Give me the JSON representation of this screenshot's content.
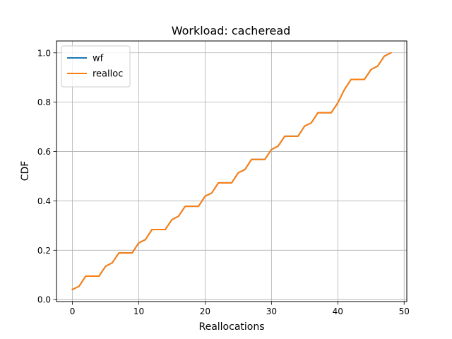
{
  "chart_data": {
    "type": "line",
    "title": "Workload: cacheread",
    "xlabel": "Reallocations",
    "ylabel": "CDF",
    "xlim": [
      -2.4,
      50.4
    ],
    "ylim": [
      -0.008,
      1.048
    ],
    "xticks": [
      0,
      10,
      20,
      30,
      40,
      50
    ],
    "xtick_labels": [
      "0",
      "10",
      "20",
      "30",
      "40",
      "50"
    ],
    "yticks": [
      0.0,
      0.2,
      0.4,
      0.6,
      0.8,
      1.0
    ],
    "ytick_labels": [
      "0.0",
      "0.2",
      "0.4",
      "0.6",
      "0.8",
      "1.0"
    ],
    "grid": true,
    "legend": "upper-left",
    "x": [
      0,
      1,
      2,
      3,
      4,
      5,
      6,
      7,
      8,
      9,
      10,
      11,
      12,
      13,
      14,
      15,
      16,
      17,
      18,
      19,
      20,
      21,
      22,
      23,
      24,
      25,
      26,
      27,
      28,
      29,
      30,
      31,
      32,
      33,
      34,
      35,
      36,
      37,
      38,
      39,
      40,
      41,
      42,
      43,
      44,
      45,
      46,
      47,
      48
    ],
    "series": [
      {
        "name": "wf",
        "color": "#1f77b4",
        "values": [
          0.041,
          0.054,
          0.095,
          0.095,
          0.095,
          0.135,
          0.149,
          0.189,
          0.189,
          0.189,
          0.23,
          0.243,
          0.284,
          0.284,
          0.284,
          0.324,
          0.338,
          0.378,
          0.378,
          0.378,
          0.419,
          0.432,
          0.473,
          0.473,
          0.473,
          0.514,
          0.527,
          0.568,
          0.568,
          0.568,
          0.608,
          0.622,
          0.662,
          0.662,
          0.662,
          0.703,
          0.716,
          0.757,
          0.757,
          0.757,
          0.797,
          0.851,
          0.892,
          0.892,
          0.892,
          0.932,
          0.946,
          0.986,
          1.0
        ]
      },
      {
        "name": "realloc",
        "color": "#ff7f0e",
        "values": [
          0.041,
          0.054,
          0.095,
          0.095,
          0.095,
          0.135,
          0.149,
          0.189,
          0.189,
          0.189,
          0.23,
          0.243,
          0.284,
          0.284,
          0.284,
          0.324,
          0.338,
          0.378,
          0.378,
          0.378,
          0.419,
          0.432,
          0.473,
          0.473,
          0.473,
          0.514,
          0.527,
          0.568,
          0.568,
          0.568,
          0.608,
          0.622,
          0.662,
          0.662,
          0.662,
          0.703,
          0.716,
          0.757,
          0.757,
          0.757,
          0.797,
          0.851,
          0.892,
          0.892,
          0.892,
          0.932,
          0.946,
          0.986,
          1.0
        ]
      }
    ]
  }
}
